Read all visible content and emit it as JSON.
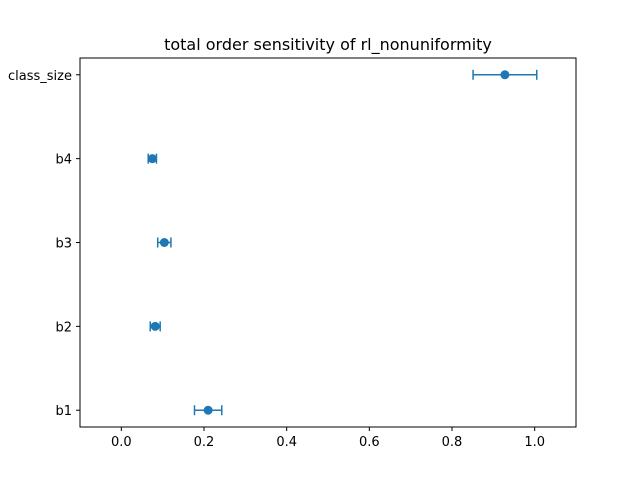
{
  "chart_data": {
    "type": "scatter",
    "title": "total order sensitivity of rl_nonuniformity",
    "xlabel": "",
    "ylabel": "",
    "xlim": [
      -0.1,
      1.1
    ],
    "xticks": [
      0.0,
      0.2,
      0.4,
      0.6,
      0.8,
      1.0
    ],
    "xtick_labels": [
      "0.0",
      "0.2",
      "0.4",
      "0.6",
      "0.8",
      "1.0"
    ],
    "categories": [
      "b1",
      "b2",
      "b3",
      "b4",
      "class_size"
    ],
    "values": [
      0.21,
      0.082,
      0.104,
      0.075,
      0.928
    ],
    "errors": [
      0.033,
      0.012,
      0.016,
      0.01,
      0.077
    ],
    "grid": false,
    "color": "#1f77b4"
  }
}
